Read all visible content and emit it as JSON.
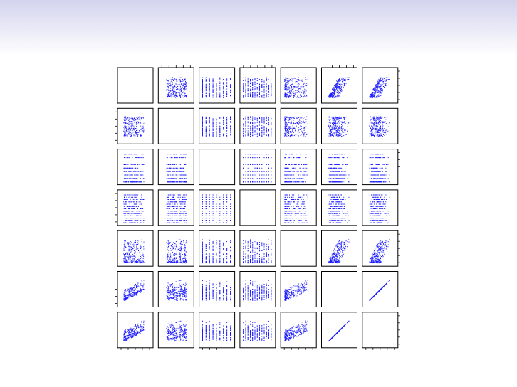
{
  "slide": {
    "header_gradient": [
      "#d3d3ee",
      "#ffffff"
    ]
  },
  "chart_data": {
    "type": "scatter",
    "kind": "scatterplot-matrix",
    "n_variables": 7,
    "variable_names": [],
    "title": "",
    "diagonal": "empty",
    "point_color": "#1a1aff",
    "grid": false,
    "legend": "none",
    "tick_labels_visible": false,
    "variables": [
      {
        "index": 1,
        "kind": "continuous",
        "range": [
          0,
          100
        ]
      },
      {
        "index": 2,
        "kind": "continuous",
        "range": [
          0,
          100
        ]
      },
      {
        "index": 3,
        "kind": "discrete",
        "levels": [
          0,
          1,
          2,
          3,
          4,
          5,
          6,
          7,
          8
        ]
      },
      {
        "index": 4,
        "kind": "discrete",
        "levels": [
          0,
          1,
          2,
          3,
          4,
          5,
          6,
          7,
          8,
          9,
          10,
          11,
          12
        ]
      },
      {
        "index": 5,
        "kind": "continuous",
        "range": [
          0,
          100
        ],
        "skew": "right"
      },
      {
        "index": 6,
        "kind": "continuous",
        "range": [
          0,
          100
        ]
      },
      {
        "index": 7,
        "kind": "continuous",
        "range": [
          0,
          100
        ]
      }
    ],
    "relationships": [
      {
        "pair": [
          1,
          6
        ],
        "pattern": "positive"
      },
      {
        "pair": [
          1,
          7
        ],
        "pattern": "positive"
      },
      {
        "pair": [
          5,
          6
        ],
        "pattern": "positive"
      },
      {
        "pair": [
          5,
          7
        ],
        "pattern": "positive"
      },
      {
        "pair": [
          6,
          7
        ],
        "pattern": "near-perfect-linear"
      }
    ],
    "points_per_panel": 300
  }
}
